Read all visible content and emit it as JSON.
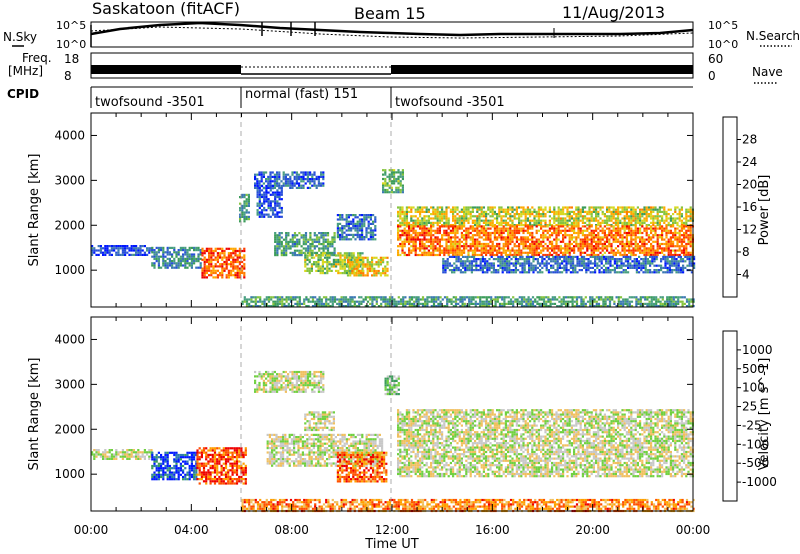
{
  "header": {
    "site": "Saskatoon (fitACF)",
    "beam": "Beam 15",
    "date": "11/Aug/2013"
  },
  "left_labels": {
    "nsky": "N.Sky",
    "freq_line1": "Freq.",
    "freq_line2": "[MHz]",
    "cpid": "CPID"
  },
  "right_labels": {
    "nsearch": "N.Search",
    "nave": "Nave"
  },
  "noise_axis": {
    "left_top": "10^5",
    "left_bottom": "10^0",
    "right_top": "10^5",
    "right_bottom": "10^0"
  },
  "freq_axis": {
    "left_ticks": [
      "18",
      "8"
    ],
    "right_ticks": [
      "60",
      "0"
    ]
  },
  "cpid_segments": [
    {
      "label": "twofsound -3501",
      "start_h": 0,
      "end_h": 6
    },
    {
      "label": "normal (fast) 151",
      "start_h": 6,
      "end_h": 12
    },
    {
      "label": "twofsound -3501",
      "start_h": 12,
      "end_h": 24
    }
  ],
  "chart_data": [
    {
      "type": "heatmap",
      "name": "power",
      "xlabel": "",
      "ylabel": "Slant Range [km]",
      "xlim": [
        0,
        24
      ],
      "ylim": [
        180,
        4500
      ],
      "yticks": [
        1000,
        2000,
        3000,
        4000
      ],
      "colorbar": {
        "label": "Power [dB]",
        "ticks": [
          "28",
          "24",
          "20",
          "16",
          "12",
          "8",
          "4"
        ],
        "colors": [
          "#0018ff",
          "#2850d8",
          "#3c78b4",
          "#489e80",
          "#3c9c5a",
          "#86c43e",
          "#d8d820",
          "#ffa800",
          "#ff7c00",
          "#ff3a00",
          "#ee0000"
        ]
      },
      "regions": [
        {
          "t0": 0.0,
          "t1": 2.4,
          "r0": 1330,
          "r1": 1560,
          "level": 0.12
        },
        {
          "t0": 2.4,
          "t1": 4.4,
          "r0": 1050,
          "r1": 1520,
          "level": 0.28
        },
        {
          "t0": 4.4,
          "t1": 6.1,
          "r0": 820,
          "r1": 1500,
          "level": 0.82
        },
        {
          "t0": 5.9,
          "t1": 6.3,
          "r0": 2100,
          "r1": 2700,
          "level": 0.35
        },
        {
          "t0": 6.5,
          "t1": 9.3,
          "r0": 2850,
          "r1": 3200,
          "level": 0.18
        },
        {
          "t0": 6.6,
          "t1": 7.6,
          "r0": 2200,
          "r1": 2900,
          "level": 0.14
        },
        {
          "t0": 7.3,
          "t1": 9.7,
          "r0": 1350,
          "r1": 1850,
          "level": 0.34
        },
        {
          "t0": 8.5,
          "t1": 10.8,
          "r0": 950,
          "r1": 1400,
          "level": 0.5
        },
        {
          "t0": 9.8,
          "t1": 11.3,
          "r0": 1700,
          "r1": 2250,
          "level": 0.22
        },
        {
          "t0": 10.2,
          "t1": 11.8,
          "r0": 900,
          "r1": 1300,
          "level": 0.62
        },
        {
          "t0": 11.6,
          "t1": 12.4,
          "r0": 2750,
          "r1": 3250,
          "level": 0.42
        },
        {
          "t0": 12.2,
          "t1": 24.0,
          "r0": 2000,
          "r1": 2420,
          "level": 0.58
        },
        {
          "t0": 12.2,
          "t1": 24.0,
          "r0": 1320,
          "r1": 2000,
          "level": 0.78
        },
        {
          "t0": 14.0,
          "t1": 24.0,
          "r0": 950,
          "r1": 1320,
          "level": 0.2
        },
        {
          "t0": 6.0,
          "t1": 24.0,
          "r0": 180,
          "r1": 420,
          "level": 0.35
        }
      ]
    },
    {
      "type": "heatmap",
      "name": "velocity",
      "xlabel": "Time UT",
      "ylabel": "Slant Range [km]",
      "xlim": [
        0,
        24
      ],
      "ylim": [
        180,
        4500
      ],
      "yticks": [
        1000,
        2000,
        3000,
        4000
      ],
      "xticks": [
        "00:00",
        "04:00",
        "08:00",
        "12:00",
        "16:00",
        "20:00",
        "00:00"
      ],
      "colorbar": {
        "label": "Velocity [m s^-1]",
        "ticks": [
          "1000",
          "500",
          "100",
          "25",
          "-25",
          "-100",
          "-500",
          "-1000"
        ],
        "colors": [
          "#ee0000",
          "#ff5000",
          "#ffa000",
          "#f0c060",
          "#c8c8c8",
          "#70d040",
          "#3c9c5a",
          "#2c7ab4",
          "#0018ff"
        ]
      },
      "regions": [
        {
          "t0": 0.0,
          "t1": 2.4,
          "r0": 1330,
          "r1": 1560,
          "level": 0.5
        },
        {
          "t0": 2.4,
          "t1": 4.2,
          "r0": 880,
          "r1": 1500,
          "level": 0.9
        },
        {
          "t0": 4.2,
          "t1": 6.2,
          "r0": 780,
          "r1": 1600,
          "level": 0.15
        },
        {
          "t0": 6.5,
          "t1": 9.3,
          "r0": 2850,
          "r1": 3300,
          "level": 0.5
        },
        {
          "t0": 7.0,
          "t1": 11.6,
          "r0": 1200,
          "r1": 1900,
          "level": 0.5
        },
        {
          "t0": 8.5,
          "t1": 9.7,
          "r0": 2000,
          "r1": 2400,
          "level": 0.5
        },
        {
          "t0": 9.8,
          "t1": 11.8,
          "r0": 850,
          "r1": 1500,
          "level": 0.2
        },
        {
          "t0": 11.7,
          "t1": 12.3,
          "r0": 2800,
          "r1": 3200,
          "level": 0.6
        },
        {
          "t0": 12.2,
          "t1": 24.0,
          "r0": 950,
          "r1": 2450,
          "level": 0.5
        },
        {
          "t0": 6.0,
          "t1": 24.0,
          "r0": 180,
          "r1": 450,
          "level": 0.25
        }
      ]
    }
  ]
}
